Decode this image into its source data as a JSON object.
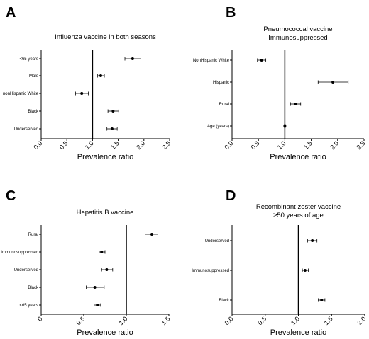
{
  "chart_data": [
    {
      "type": "scatter",
      "panel": "A",
      "title_lines": [
        "Influenza vaccine in both seasons"
      ],
      "xlabel": "Prevalence ratio",
      "xlim": [
        0.0,
        2.5
      ],
      "xticks": [
        "0.0",
        "0.5",
        "1.0",
        "1.5",
        "2.0",
        "2.5"
      ],
      "reference_line": 1.0,
      "categories": [
        "<65 years",
        "Male",
        "nonHispanic White",
        "Black",
        "Underserved"
      ],
      "estimates": [
        1.78,
        1.16,
        0.79,
        1.4,
        1.38
      ],
      "ci_lower": [
        1.63,
        1.1,
        0.67,
        1.3,
        1.28
      ],
      "ci_upper": [
        1.94,
        1.23,
        0.92,
        1.51,
        1.48
      ]
    },
    {
      "type": "scatter",
      "panel": "B",
      "title_lines": [
        "Pneumococcal vaccine",
        "Immunosuppressed"
      ],
      "xlabel": "Prevalence ratio",
      "xlim": [
        0.0,
        2.5
      ],
      "xticks": [
        "0.0",
        "0.5",
        "1.0",
        "1.5",
        "2.0",
        "2.5"
      ],
      "reference_line": 1.0,
      "categories": [
        "NonHispanic White",
        "Hispanic",
        "Rural",
        "Age (years)"
      ],
      "estimates": [
        0.56,
        1.91,
        1.2,
        1.0
      ],
      "ci_lower": [
        0.48,
        1.63,
        1.11,
        0.99
      ],
      "ci_upper": [
        0.64,
        2.2,
        1.3,
        1.01
      ]
    },
    {
      "type": "scatter",
      "panel": "C",
      "title_lines": [
        "Hepatitis B vaccine"
      ],
      "xlabel": "Prevalence ratio",
      "xlim": [
        0.0,
        1.5
      ],
      "xticks": [
        "0",
        "0.5",
        "1.0",
        "1.5"
      ],
      "reference_line": 1.0,
      "categories": [
        "Rural",
        "Immunosuppressed",
        "Underserved",
        "Black",
        "<65 years"
      ],
      "estimates": [
        1.3,
        0.71,
        0.77,
        0.63,
        0.66
      ],
      "ci_lower": [
        1.22,
        0.68,
        0.71,
        0.53,
        0.62
      ],
      "ci_upper": [
        1.37,
        0.75,
        0.84,
        0.74,
        0.7
      ]
    },
    {
      "type": "scatter",
      "panel": "D",
      "title_lines": [
        "Recombinant zoster vaccine",
        "≥50 years of age"
      ],
      "xlabel": "Prevalence ratio",
      "xlim": [
        0.0,
        2.0
      ],
      "xticks": [
        "0.0",
        "0.5",
        "1.0",
        "1.5",
        "2.0"
      ],
      "reference_line": 1.0,
      "categories": [
        "Underserved",
        "Immunosuppressed",
        "Black"
      ],
      "estimates": [
        1.21,
        1.1,
        1.35
      ],
      "ci_lower": [
        1.14,
        1.06,
        1.3
      ],
      "ci_upper": [
        1.28,
        1.15,
        1.4
      ]
    }
  ]
}
